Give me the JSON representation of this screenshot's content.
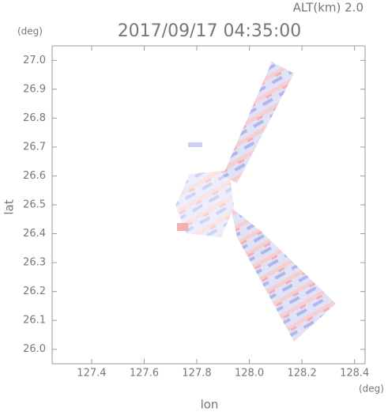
{
  "chart_data": {
    "type": "image",
    "title": "2017/09/17 04:35:00",
    "subtitle": "ALT(km) 2.0",
    "y_unit": "(deg)",
    "x_unit": "(deg)",
    "xlabel": "lon",
    "ylabel": "lat",
    "xlim": [
      127.25,
      128.44
    ],
    "ylim": [
      25.95,
      27.05
    ],
    "xticks": [
      127.4,
      127.6,
      127.8,
      {
        "value": 128,
        "label": "128.0"
      },
      128.2,
      128.4
    ],
    "yticks": [
      {
        "value": 26,
        "label": "26.0"
      },
      26.1,
      26.2,
      26.3,
      26.4,
      26.5,
      26.6,
      26.7,
      26.8,
      26.9,
      {
        "value": 27,
        "label": "27.0"
      }
    ]
  }
}
